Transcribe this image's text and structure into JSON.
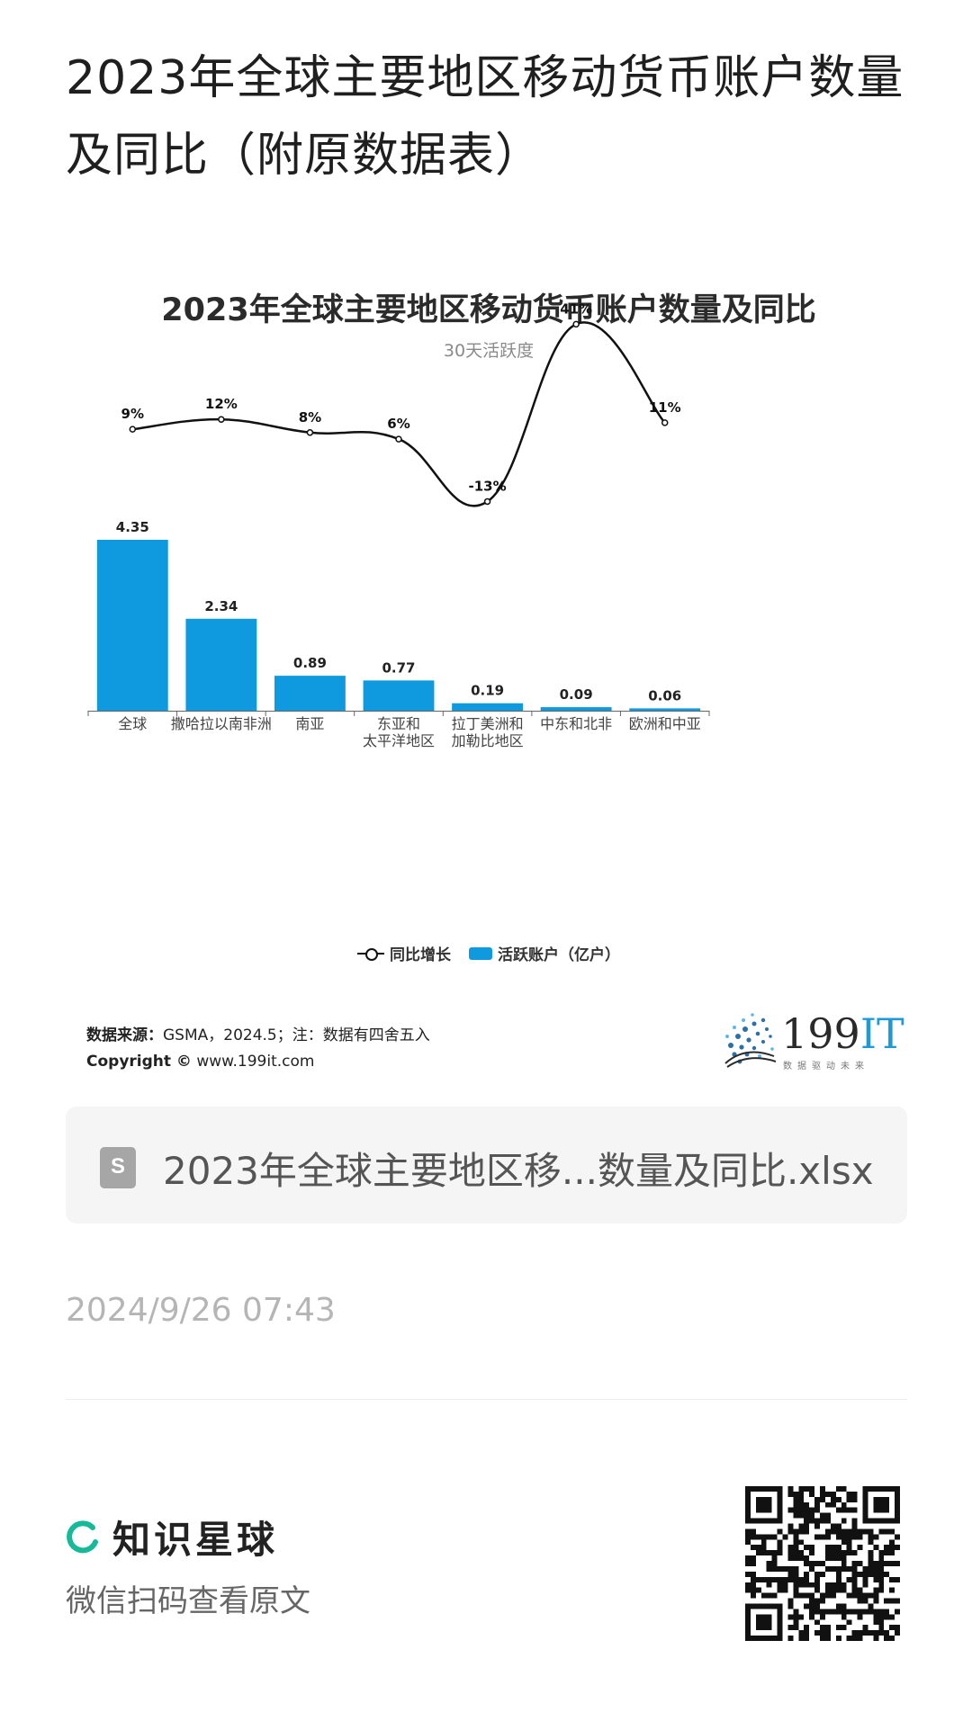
{
  "page": {
    "title": "2023年全球主要地区移动货币账户数量及同比（附原数据表）"
  },
  "chart_data": {
    "type": "bar",
    "title": "2023年全球主要地区移动货币账户数量及同比",
    "subtitle": "30天活跃度",
    "categories": [
      [
        "全球"
      ],
      [
        "撒哈拉以南非洲"
      ],
      [
        "南亚"
      ],
      [
        "东亚和",
        "太平洋地区"
      ],
      [
        "拉丁美洲和",
        "加勒比地区"
      ],
      [
        "中东和北非"
      ],
      [
        "欧洲和中亚"
      ]
    ],
    "series": [
      {
        "name": "活跃账户（亿户）",
        "type": "bar",
        "color": "#0f9ae0",
        "values": [
          4.35,
          2.34,
          0.89,
          0.77,
          0.19,
          0.09,
          0.06
        ],
        "labels": [
          "4.35",
          "2.34",
          "0.89",
          "0.77",
          "0.19",
          "0.09",
          "0.06"
        ]
      },
      {
        "name": "同比增长",
        "type": "line",
        "color": "#111111",
        "values": [
          9,
          12,
          8,
          6,
          -13,
          41,
          11
        ],
        "labels": [
          "9%",
          "12%",
          "8%",
          "6%",
          "-13%",
          "41%",
          "11%"
        ]
      }
    ],
    "legend": {
      "position": "bottom",
      "items": [
        "同比增长",
        "活跃账户（亿户）"
      ]
    },
    "grid": false
  },
  "source": {
    "label": "数据来源：",
    "text": "GSMA，2024.5；注：数据有四舍五入",
    "copyright_label": "Copyright ©",
    "copyright_url": "www.199it.com"
  },
  "logo": {
    "name_num": "199",
    "name_it": "IT",
    "tagline": "数据驱动未来"
  },
  "attachment": {
    "icon": "spreadsheet-file-icon",
    "filename": "2023年全球主要地区移...数量及同比.xlsx"
  },
  "meta": {
    "timestamp": "2024/9/26 07:43"
  },
  "footer": {
    "brand": "知识星球",
    "subtitle": "微信扫码查看原文",
    "brand_color": "#16b998"
  }
}
